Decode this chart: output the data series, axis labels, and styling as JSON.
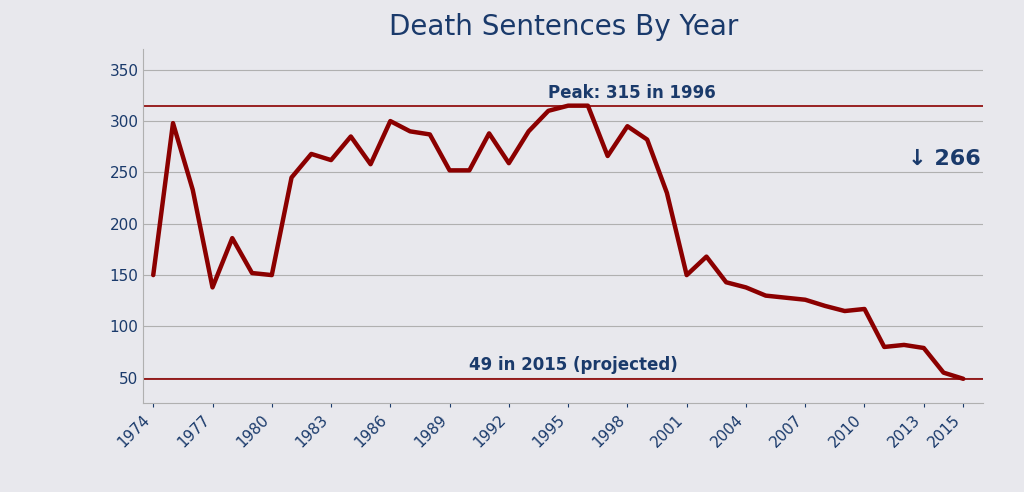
{
  "title": "Death Sentences By Year",
  "title_color": "#1a3a6b",
  "title_fontsize": 20,
  "plot_bg_color": "#e8e8ed",
  "fig_bg_color": "#e8e8ed",
  "line_color": "#8b0000",
  "line_width": 3.2,
  "years": [
    1974,
    1975,
    1976,
    1977,
    1978,
    1979,
    1980,
    1981,
    1982,
    1983,
    1984,
    1985,
    1986,
    1987,
    1988,
    1989,
    1990,
    1991,
    1992,
    1993,
    1994,
    1995,
    1996,
    1997,
    1998,
    1999,
    2000,
    2001,
    2002,
    2003,
    2004,
    2005,
    2006,
    2007,
    2008,
    2009,
    2010,
    2011,
    2012,
    2013,
    2014,
    2015
  ],
  "values": [
    150,
    298,
    233,
    138,
    186,
    152,
    150,
    245,
    268,
    262,
    285,
    258,
    300,
    290,
    287,
    252,
    252,
    288,
    259,
    290,
    310,
    315,
    315,
    266,
    295,
    282,
    230,
    150,
    168,
    143,
    138,
    130,
    128,
    126,
    120,
    115,
    117,
    80,
    82,
    79,
    55,
    49
  ],
  "peak_value": 315,
  "peak_line_color": "#8b0000",
  "peak_label": "Peak: 315 in 1996",
  "peak_label_color": "#1a3a6b",
  "projected_value": 49,
  "projected_line_color": "#8b0000",
  "projected_label": "49 in 2015 (projected)",
  "projected_label_color": "#1a3a6b",
  "arrow_label": "266",
  "arrow_label_color": "#1a3a6b",
  "ylim": [
    25,
    370
  ],
  "yticks": [
    50,
    100,
    150,
    200,
    250,
    300,
    350
  ],
  "xtick_labels": [
    "1974",
    "1977",
    "1980",
    "1983",
    "1986",
    "1989",
    "1992",
    "1995",
    "1998",
    "2001",
    "2004",
    "2007",
    "2010",
    "2013",
    "2015"
  ],
  "xtick_years": [
    1974,
    1977,
    1980,
    1983,
    1986,
    1989,
    1992,
    1995,
    1998,
    2001,
    2004,
    2007,
    2010,
    2013,
    2015
  ],
  "grid_color": "#b0b0b0",
  "tick_color": "#1a3a6b",
  "tick_fontsize": 11,
  "outer_bg_color": "#000000"
}
